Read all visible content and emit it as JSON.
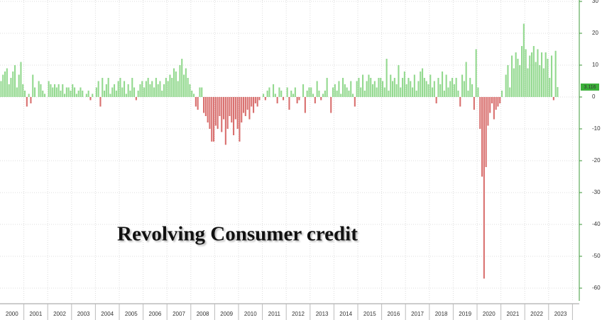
{
  "chart_data": {
    "type": "bar",
    "title": "Revolving Consumer credit",
    "categories": [
      "2000",
      "2001",
      "2002",
      "2003",
      "2004",
      "2005",
      "2006",
      "2007",
      "2008",
      "2009",
      "2010",
      "2011",
      "2012",
      "2013",
      "2014",
      "2015",
      "2016",
      "2017",
      "2018",
      "2019",
      "2020",
      "2021",
      "2022",
      "2023"
    ],
    "values": [
      [
        5,
        7,
        8,
        9,
        4,
        6,
        8,
        10,
        3,
        7,
        11,
        4
      ],
      [
        2,
        -3,
        1,
        -2,
        7,
        3,
        0,
        5,
        4,
        2,
        1,
        0
      ],
      [
        5,
        4,
        3,
        4,
        3,
        4,
        2,
        4,
        1,
        3,
        3,
        2
      ],
      [
        4,
        3,
        1,
        2,
        3,
        2,
        0,
        1,
        2,
        -1,
        1,
        0
      ],
      [
        3,
        5,
        -3,
        6,
        2,
        4,
        6,
        1,
        3,
        4,
        2,
        5
      ],
      [
        6,
        3,
        5,
        1,
        4,
        2,
        6,
        3,
        -1,
        2,
        4,
        5
      ],
      [
        3,
        5,
        6,
        4,
        5,
        3,
        6,
        4,
        5,
        2,
        4,
        6
      ],
      [
        5,
        7,
        6,
        9,
        8,
        5,
        10,
        12,
        7,
        9,
        6,
        4
      ],
      [
        2,
        1,
        -3,
        -4,
        3,
        3,
        -5,
        -6,
        -8,
        -10,
        -14,
        -14
      ],
      [
        -9,
        -10,
        -6,
        -11,
        -7,
        -15,
        -10,
        -6,
        -8,
        -12,
        -7,
        -10
      ],
      [
        -14,
        -8,
        -5,
        -6,
        -4,
        -7,
        -3,
        -5,
        -2,
        -3,
        -1,
        0
      ],
      [
        1,
        -1,
        2,
        3,
        0,
        4,
        1,
        -2,
        3,
        2,
        -1,
        0
      ],
      [
        3,
        -4,
        2,
        1,
        3,
        -2,
        -1,
        0,
        4,
        -5,
        2,
        3
      ],
      [
        3,
        1,
        -2,
        5,
        2,
        -1,
        1,
        2,
        6,
        0,
        -5,
        3
      ],
      [
        4,
        2,
        5,
        1,
        6,
        4,
        3,
        2,
        5,
        1,
        -3,
        5
      ],
      [
        6,
        3,
        7,
        2,
        5,
        7,
        6,
        4,
        5,
        3,
        6,
        6
      ],
      [
        5,
        3,
        12,
        2,
        7,
        5,
        6,
        4,
        10,
        3,
        6,
        8
      ],
      [
        4,
        6,
        5,
        3,
        7,
        2,
        5,
        8,
        9,
        6,
        5,
        4
      ],
      [
        7,
        3,
        5,
        -2,
        6,
        4,
        8,
        2,
        7,
        3,
        5,
        6
      ],
      [
        4,
        6,
        2,
        -3,
        7,
        5,
        11,
        2,
        6,
        4,
        -4,
        15
      ],
      [
        3,
        -10,
        -25,
        -57,
        -22,
        -9,
        -5,
        -2,
        -7,
        -4,
        -3,
        -2
      ],
      [
        2,
        0,
        7,
        10,
        3,
        13,
        9,
        14,
        12,
        10,
        16,
        23
      ],
      [
        15,
        9,
        13,
        14,
        16,
        11,
        15,
        10,
        14,
        9,
        14,
        12
      ],
      [
        6,
        13,
        -1,
        14.5,
        3.116
      ]
    ],
    "positive_color": "#93d98f",
    "negative_color": "#d9706f",
    "ylim": [
      -64,
      30
    ],
    "yticks": [
      30,
      20,
      10,
      0,
      -10,
      -20,
      -30,
      -40,
      -50,
      -60
    ],
    "grid": true
  }
}
